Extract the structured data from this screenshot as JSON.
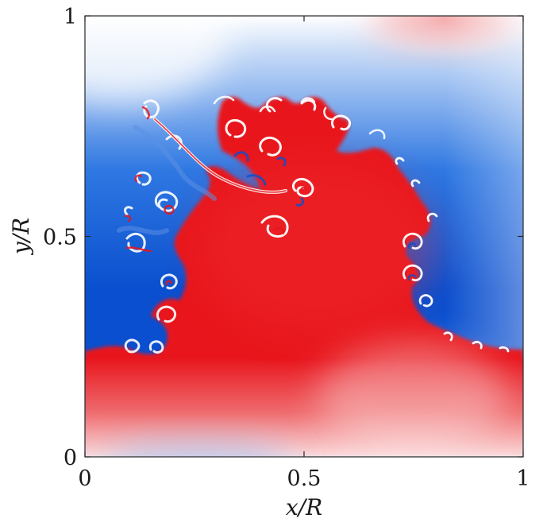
{
  "chart_data": {
    "type": "heatmap",
    "title": "",
    "xlabel": "x/R",
    "ylabel": "y/R",
    "xlim": [
      0,
      1
    ],
    "ylim": [
      0,
      1
    ],
    "x_ticks": [
      {
        "value": 0,
        "label": "0"
      },
      {
        "value": 0.5,
        "label": "0.5"
      },
      {
        "value": 1,
        "label": "1"
      }
    ],
    "y_ticks": [
      {
        "value": 0,
        "label": "0"
      },
      {
        "value": 0.5,
        "label": "0.5"
      },
      {
        "value": 1,
        "label": "1"
      }
    ],
    "colormap": [
      "#0a4fcf",
      "#ffffff",
      "#e8141c"
    ],
    "grid": false,
    "legend": "none"
  }
}
